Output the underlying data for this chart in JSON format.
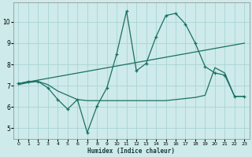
{
  "xlabel": "Humidex (Indice chaleur)",
  "bg_color": "#ceeaea",
  "line_color": "#1a7060",
  "grid_color": "#a8d4d4",
  "xlim": [
    -0.5,
    23.5
  ],
  "ylim": [
    4.5,
    10.9
  ],
  "yticks": [
    5,
    6,
    7,
    8,
    9,
    10
  ],
  "xticks": [
    0,
    1,
    2,
    3,
    4,
    5,
    6,
    7,
    8,
    9,
    10,
    11,
    12,
    13,
    14,
    15,
    16,
    17,
    18,
    19,
    20,
    21,
    22,
    23
  ],
  "jagged_x": [
    0,
    1,
    2,
    3,
    4,
    5,
    6,
    7,
    8,
    9,
    10,
    11,
    12,
    13,
    14,
    15,
    16,
    17,
    18,
    19,
    20,
    21,
    22,
    23
  ],
  "jagged_y": [
    7.1,
    7.2,
    7.2,
    6.9,
    6.35,
    5.9,
    6.35,
    4.8,
    6.05,
    6.9,
    8.5,
    10.5,
    7.7,
    8.05,
    9.3,
    10.3,
    10.4,
    9.9,
    9.0,
    7.9,
    7.6,
    7.5,
    6.5,
    6.5
  ],
  "upper_trend_x": [
    0,
    23
  ],
  "upper_trend_y": [
    7.1,
    9.0
  ],
  "lower_line_x": [
    0,
    1,
    2,
    3,
    4,
    5,
    6,
    7,
    8,
    9,
    10,
    11,
    12,
    13,
    14,
    15,
    16,
    17,
    18,
    19,
    20,
    21,
    22,
    23
  ],
  "lower_line_y": [
    7.05,
    7.15,
    7.2,
    7.05,
    6.75,
    6.55,
    6.35,
    6.3,
    6.3,
    6.3,
    6.3,
    6.3,
    6.3,
    6.3,
    6.3,
    6.3,
    6.35,
    6.4,
    6.45,
    6.55,
    7.85,
    7.6,
    6.5,
    6.5
  ]
}
